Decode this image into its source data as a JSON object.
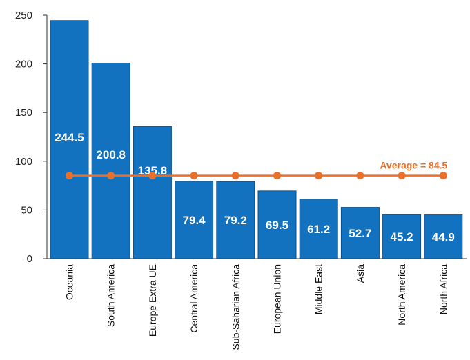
{
  "chart_data": {
    "type": "bar",
    "categories": [
      "Oceania",
      "South America",
      "Europe Extra UE",
      "Central America",
      "Sub-Saharian Africa",
      "European Union",
      "Middle East",
      "Asia",
      "North America",
      "North Africa"
    ],
    "values": [
      244.5,
      200.8,
      135.8,
      79.4,
      79.2,
      69.5,
      61.2,
      52.7,
      45.2,
      44.9
    ],
    "value_labels": [
      "244.5",
      "200.8",
      "135.8",
      "79.4",
      "79.2",
      "69.5",
      "61.2",
      "52.7",
      "45.2",
      "44.9"
    ],
    "average": {
      "value": 84.5,
      "label": "Average = 84.5"
    },
    "yticks": [
      "0",
      "50",
      "100",
      "150",
      "200",
      "250"
    ],
    "ylim": [
      0,
      250
    ],
    "grid": false,
    "colors": {
      "bar": "#1272c0",
      "bar_edge": "#0e4f87",
      "average": "#e8702a",
      "axis": "#333333"
    }
  }
}
